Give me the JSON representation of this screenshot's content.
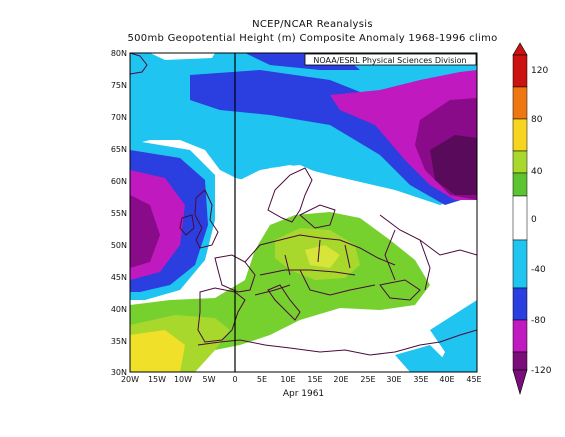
{
  "header": {
    "title": "NCEP/NCAR Reanalysis",
    "subtitle": "500mb Geopotential Height (m) Composite Anomaly 1968-1996 climo",
    "credit": "NOAA/ESRL Physical Sciences Division"
  },
  "axes": {
    "x_title": "Apr 1961",
    "lat_ticks": [
      "80N",
      "75N",
      "70N",
      "65N",
      "60N",
      "55N",
      "50N",
      "45N",
      "40N",
      "35N",
      "30N"
    ],
    "lon_ticks": [
      "20W",
      "15W",
      "10W",
      "5W",
      "0",
      "5E",
      "10E",
      "15E",
      "20E",
      "25E",
      "30E",
      "35E",
      "40E",
      "45E"
    ]
  },
  "map": {
    "lon_range": [
      -20,
      45
    ],
    "lat_range": [
      30,
      80
    ],
    "contour_interval": 20,
    "colors": {
      "neg120": "#8a0b8a",
      "neg80": "#bf19bf",
      "neg60": "#2b3ee0",
      "neg40": "#1fa1e8",
      "neg20": "#20c4f0",
      "zero": "#ffffff",
      "pos20": "#76d12e",
      "pos40": "#a8d82c",
      "pos60": "#d7e43a",
      "pos80": "#f0e02a",
      "coast": "#4a0a3a"
    }
  },
  "colorbar": {
    "labels": [
      "120",
      "80",
      "40",
      "0",
      "-40",
      "-80",
      "-120"
    ],
    "colors": [
      "#cc1111",
      "#ee7711",
      "#f6d420",
      "#a8d82c",
      "#5cc430",
      "#ffffff",
      "#20c4f0",
      "#2b3ee0",
      "#bf19bf",
      "#7a0d7a"
    ]
  }
}
